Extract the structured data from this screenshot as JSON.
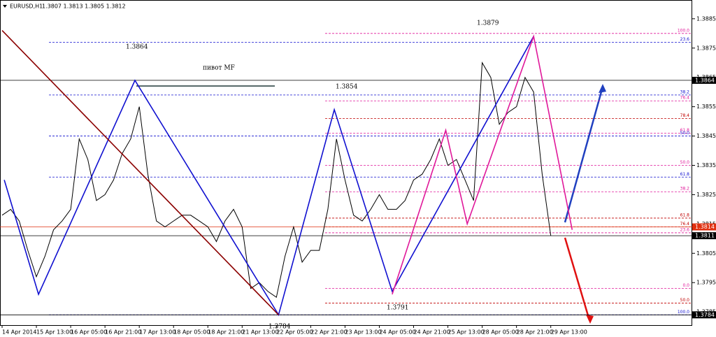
{
  "chart_data": {
    "type": "line",
    "title": "EURUSD,H1",
    "subtitle": "1.3807 1.3813 1.3805 1.3812",
    "x": [
      0,
      4,
      8,
      12,
      16,
      20,
      24,
      28,
      32,
      36,
      40,
      44,
      48,
      52,
      56,
      60,
      64,
      68,
      72,
      76,
      80,
      84,
      88,
      92,
      96,
      100,
      104,
      108,
      112,
      116,
      120,
      124,
      128,
      132,
      136,
      140,
      144,
      148,
      152,
      156,
      160,
      164,
      168,
      172,
      176,
      180,
      184,
      188,
      192,
      196,
      200,
      204,
      208,
      212,
      216,
      220,
      224,
      228,
      232,
      236,
      240,
      244,
      248,
      252,
      256
    ],
    "series": [
      {
        "name": "EURUSD",
        "color": "#000000",
        "values": [
          1.3818,
          1.382,
          1.3816,
          1.3806,
          1.3797,
          1.3804,
          1.3813,
          1.3816,
          1.382,
          1.3844,
          1.3837,
          1.3823,
          1.3825,
          1.383,
          1.3839,
          1.3844,
          1.3855,
          1.3832,
          1.3816,
          1.3814,
          1.3816,
          1.3818,
          1.3818,
          1.3816,
          1.3814,
          1.3809,
          1.3816,
          1.382,
          1.3814,
          1.3793,
          1.3795,
          1.3792,
          1.379,
          1.3804,
          1.3814,
          1.3802,
          1.3806,
          1.3806,
          1.382,
          1.3844,
          1.383,
          1.3818,
          1.3816,
          1.382,
          1.3825,
          1.382,
          1.382,
          1.3823,
          1.383,
          1.3832,
          1.3837,
          1.3844,
          1.3835,
          1.3837,
          1.383,
          1.3823,
          1.387,
          1.3865,
          1.3849,
          1.3853,
          1.3855,
          1.3865,
          1.386,
          1.3832,
          1.3811
        ]
      }
    ],
    "zigzags": [
      {
        "color": "#1010d0",
        "x": [
          1,
          17,
          62,
          129,
          155,
          182,
          248
        ],
        "values": [
          1.383,
          1.3791,
          1.3864,
          1.3784,
          1.3854,
          1.3792,
          1.3879
        ]
      },
      {
        "color": "#e0189a",
        "x": [
          182,
          207,
          217,
          248,
          266
        ],
        "values": [
          1.3791,
          1.3847,
          1.3815,
          1.3879,
          1.3813
        ]
      },
      {
        "color": "#8b0000",
        "x": [
          0,
          129
        ],
        "values": [
          1.3881,
          1.3784
        ]
      }
    ],
    "levels": [
      {
        "value": 1.388,
        "label": "100.0",
        "color": "#e0189a"
      },
      {
        "value": 1.3877,
        "label": "23.6",
        "color": "#1010d0"
      },
      {
        "value": 1.3859,
        "label": "38.2",
        "color": "#1010d0"
      },
      {
        "value": 1.3857,
        "label": "76.4",
        "color": "#e0189a"
      },
      {
        "value": 1.3851,
        "label": "78.4",
        "color": "#c00000"
      },
      {
        "value": 1.3846,
        "label": "61.8",
        "color": "#e0189a"
      },
      {
        "value": 1.3845,
        "label": "50.0",
        "color": "#1010d0"
      },
      {
        "value": 1.3835,
        "label": "50.0",
        "color": "#e0189a"
      },
      {
        "value": 1.3831,
        "label": "61.8",
        "color": "#1010d0"
      },
      {
        "value": 1.3826,
        "label": "38.2",
        "color": "#e0189a"
      },
      {
        "value": 1.3817,
        "label": "61.8",
        "color": "#c00000"
      },
      {
        "value": 1.3814,
        "label": "76.4",
        "color": "#c00000"
      },
      {
        "value": 1.3812,
        "label": "23.6",
        "color": "#e0189a"
      },
      {
        "value": 1.3793,
        "label": "0.0",
        "color": "#e0189a"
      },
      {
        "value": 1.3788,
        "label": "50.0",
        "color": "#c00000"
      },
      {
        "value": 1.3784,
        "label": "100.0",
        "color": "#1010d0"
      }
    ],
    "price_boxes": [
      {
        "value": 1.3864,
        "color": "#000000"
      },
      {
        "value": 1.3814,
        "color": "#e03010"
      },
      {
        "value": 1.3811,
        "color": "#000000"
      },
      {
        "value": 1.3784,
        "color": "#000000"
      }
    ],
    "annotations": [
      "1.3864",
      "пивот MF",
      "1.3854",
      "1.3879",
      "1.3791",
      "1.3784"
    ],
    "xlim": [
      0,
      322
    ],
    "ylim": [
      1.37805,
      1.38914
    ],
    "xticks": [
      {
        "value": 0,
        "label": "14 Apr 2014"
      },
      {
        "value": 16,
        "label": "15 Apr 13:00"
      },
      {
        "value": 32,
        "label": "16 Apr 05:00"
      },
      {
        "value": 48,
        "label": "16 Apr 21:00"
      },
      {
        "value": 64,
        "label": "17 Apr 13:00"
      },
      {
        "value": 80,
        "label": "18 Apr 05:00"
      },
      {
        "value": 96,
        "label": "18 Apr 21:00"
      },
      {
        "value": 112,
        "label": "21 Apr 13:00"
      },
      {
        "value": 128,
        "label": "22 Apr 05:00"
      },
      {
        "value": 144,
        "label": "22 Apr 21:00"
      },
      {
        "value": 160,
        "label": "23 Apr 13:00"
      },
      {
        "value": 176,
        "label": "24 Apr 05:00"
      },
      {
        "value": 192,
        "label": "24 Apr 21:00"
      },
      {
        "value": 208,
        "label": "25 Apr 13:00"
      },
      {
        "value": 224,
        "label": "28 Apr 05:00"
      },
      {
        "value": 240,
        "label": "28 Apr 21:00"
      },
      {
        "value": 256,
        "label": "29 Apr 13:00"
      }
    ],
    "yticks": [
      1.3785,
      1.3795,
      1.3805,
      1.3815,
      1.3825,
      1.3835,
      1.3845,
      1.3855,
      1.3865,
      1.3875,
      1.3885
    ]
  }
}
